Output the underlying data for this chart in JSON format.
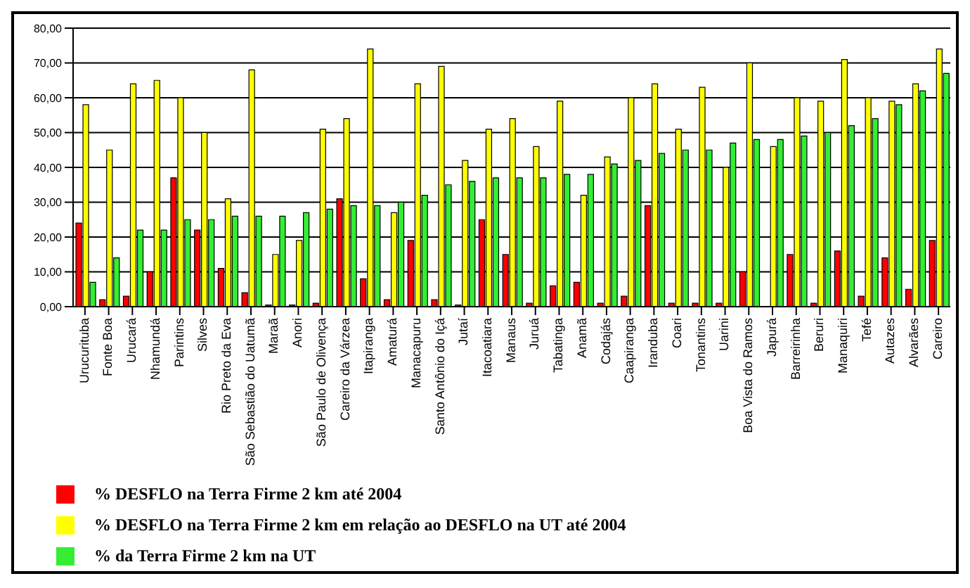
{
  "chart_data": {
    "type": "bar",
    "categories": [
      "Urucurituba",
      "Fonte Boa",
      "Urucará",
      "Nhamundá",
      "Parintins",
      "Silves",
      "Rio Preto da Eva",
      "São Sebastião do Uatumã",
      "Maraã",
      "Anori",
      "São Paulo de Olivença",
      "Careiro da Várzea",
      "Itapiranga",
      "Amaturá",
      "Manacapuru",
      "Santo Antônio do Içá",
      "Jutaí",
      "Itacoatiara",
      "Manaus",
      "Juruá",
      "Tabatinga",
      "Anamã",
      "Codajás",
      "Caapiranga",
      "Iranduba",
      "Coari",
      "Tonantins",
      "Uarini",
      "Boa Vista do Ramos",
      "Japurá",
      "Barreirinha",
      "Beruri",
      "Manaquiri",
      "Tefé",
      "Autazes",
      "Alvarães",
      "Careiro"
    ],
    "series": [
      {
        "name": "% DESFLO na Terra Firme 2 km até 2004",
        "color": "#ff0000",
        "values": [
          24,
          2,
          3,
          10,
          37,
          22,
          11,
          4,
          0.5,
          0.5,
          1,
          31,
          8,
          2,
          19,
          2,
          0.5,
          25,
          15,
          1,
          6,
          7,
          1,
          3,
          29,
          1,
          1,
          1,
          10,
          0,
          15,
          1,
          16,
          3,
          14,
          5,
          19
        ]
      },
      {
        "name": "% DESFLO na Terra Firme 2 km em relação ao DESFLO na UT até 2004",
        "color": "#ffff00",
        "values": [
          58,
          45,
          64,
          65,
          60,
          50,
          31,
          68,
          15,
          19,
          51,
          54,
          74,
          27,
          64,
          69,
          42,
          51,
          54,
          46,
          59,
          32,
          43,
          60,
          64,
          51,
          63,
          40,
          70,
          46,
          60,
          59,
          71,
          60,
          59,
          64,
          74
        ]
      },
      {
        "name": "%  da Terra Firme 2 km na UT",
        "color": "#33ee33",
        "values": [
          7,
          14,
          22,
          22,
          25,
          25,
          26,
          26,
          26,
          27,
          28,
          29,
          29,
          30,
          32,
          35,
          36,
          37,
          37,
          37,
          38,
          38,
          41,
          42,
          44,
          45,
          45,
          47,
          48,
          48,
          49,
          50,
          52,
          54,
          58,
          62,
          67
        ]
      }
    ],
    "ylim": [
      0,
      80
    ],
    "yticks": [
      {
        "value": 0,
        "label": "0,00"
      },
      {
        "value": 10,
        "label": "10,00"
      },
      {
        "value": 20,
        "label": "20,00"
      },
      {
        "value": 30,
        "label": "30,00"
      },
      {
        "value": 40,
        "label": "40,00"
      },
      {
        "value": 50,
        "label": "50,00"
      },
      {
        "value": 60,
        "label": "60,00"
      },
      {
        "value": 70,
        "label": "70,00"
      },
      {
        "value": 80,
        "label": "80,00"
      }
    ],
    "grid": "y",
    "legend": "bottom"
  }
}
